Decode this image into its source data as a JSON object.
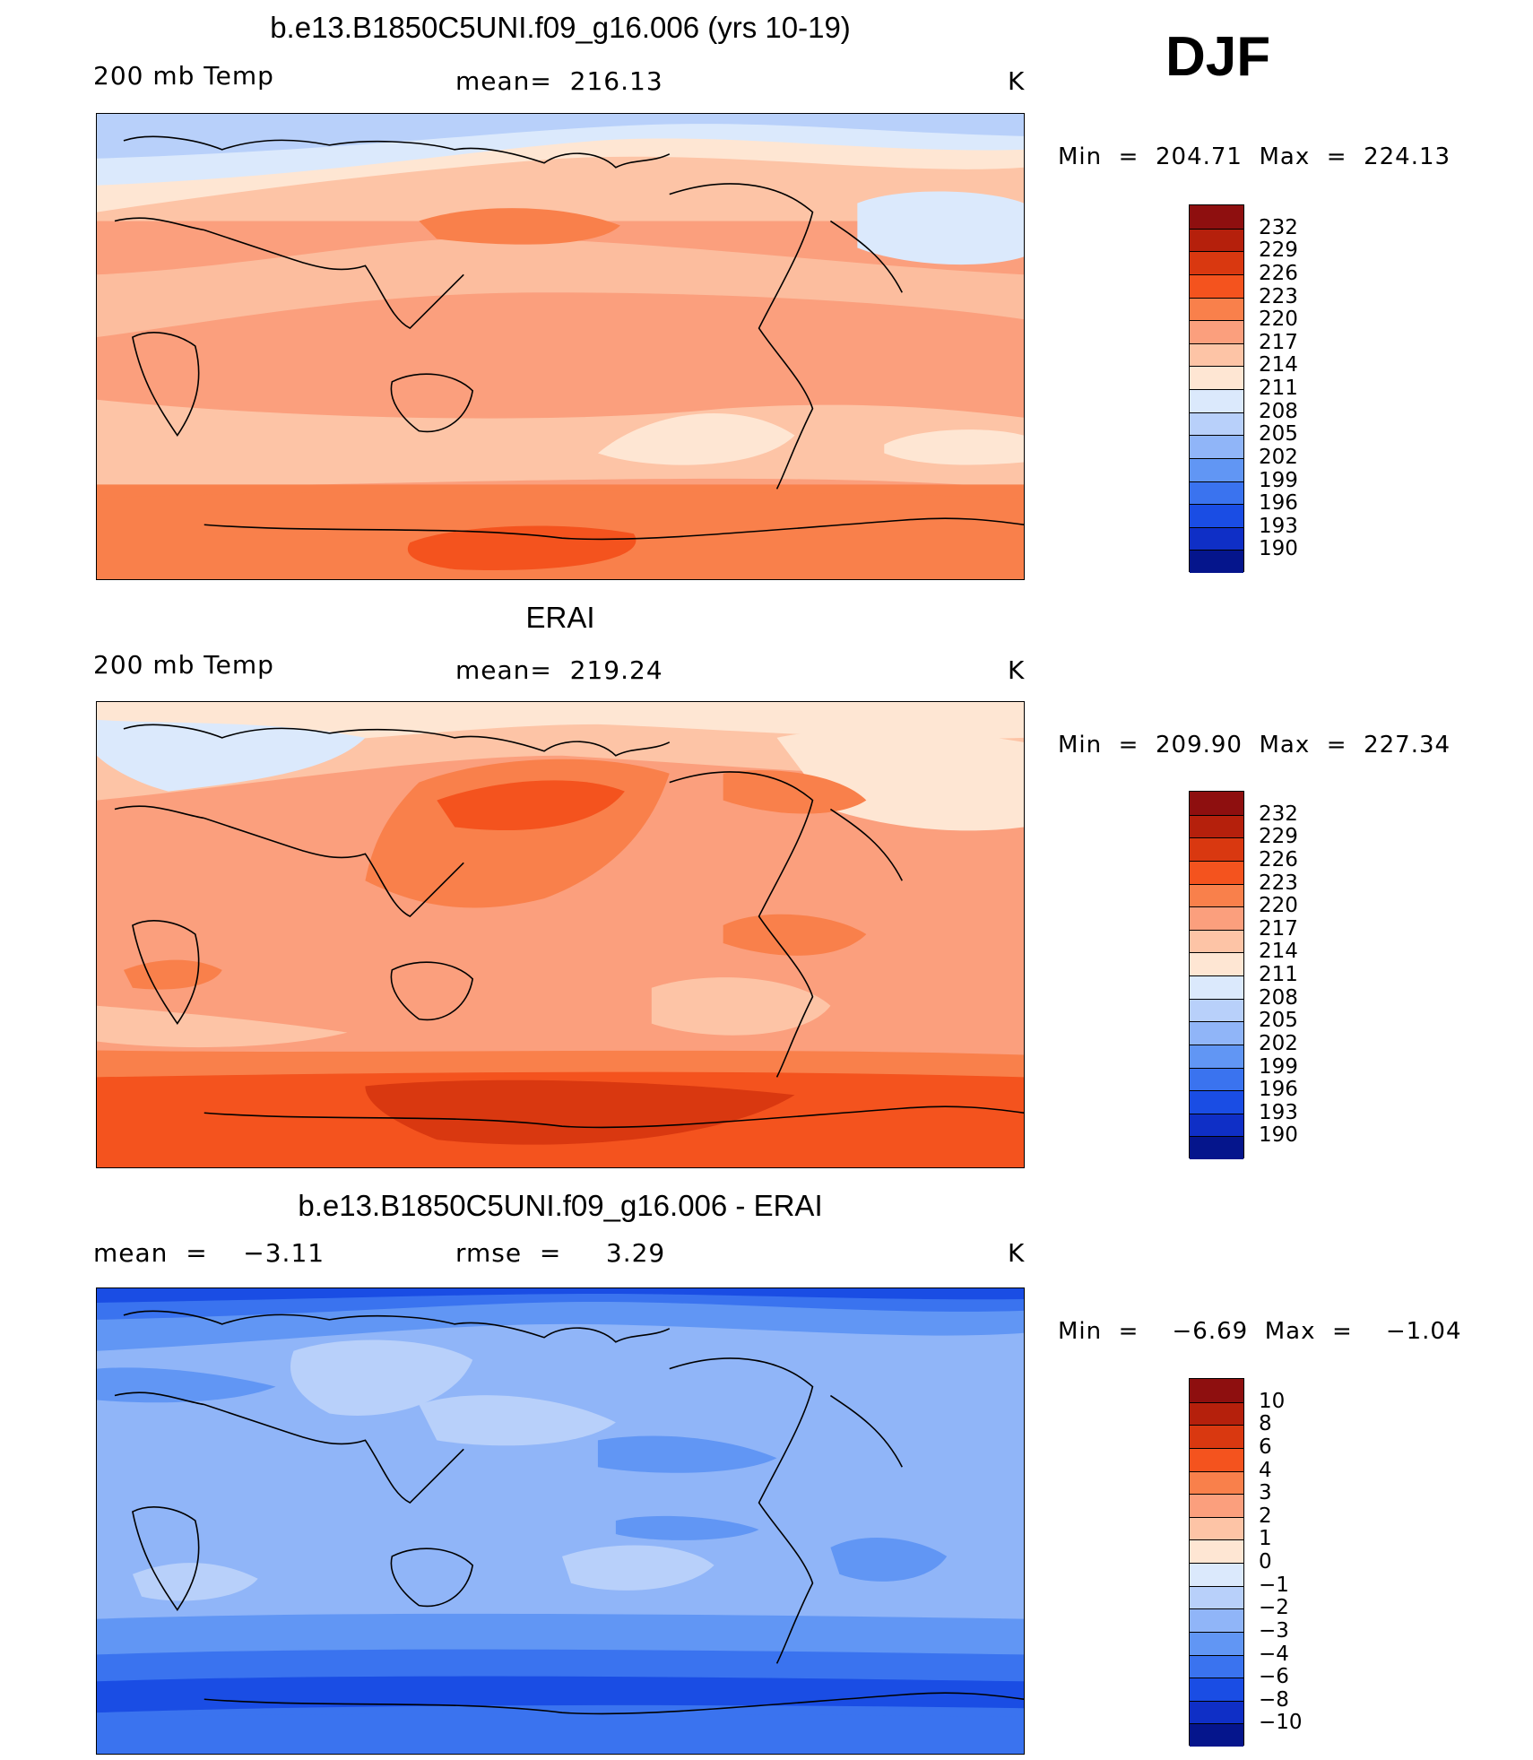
{
  "season": "DJF",
  "panels": [
    {
      "title": "b.e13.B1850C5UNI.f09_g16.006 (yrs 10-19)",
      "left_label": "200 mb Temp",
      "center_label": "mean=  216.13",
      "units": "K",
      "minmax": "Min  =  204.71  Max  =  224.13"
    },
    {
      "title": "ERAI",
      "left_label": "200 mb Temp",
      "center_label": "mean=  219.24",
      "units": "K",
      "minmax": "Min  =  209.90  Max  =  227.34"
    },
    {
      "title": "b.e13.B1850C5UNI.f09_g16.006 - ERAI",
      "left_label": "mean  =    −3.11",
      "center_label": "rmse  =     3.29",
      "units": "K",
      "minmax": "Min  =    −6.69  Max  =    −1.04"
    }
  ],
  "colorbars": {
    "temp": {
      "labels": [
        "232",
        "229",
        "226",
        "223",
        "220",
        "217",
        "214",
        "211",
        "208",
        "205",
        "202",
        "199",
        "196",
        "193",
        "190"
      ],
      "colors": [
        "#8e0f0f",
        "#b5200c",
        "#d93810",
        "#f4531e",
        "#f9804b",
        "#fb9f7d",
        "#fdc4a6",
        "#fee6d3",
        "#dbe9fc",
        "#b8d0fa",
        "#90b5f8",
        "#6196f4",
        "#3a73ef",
        "#1a4de4",
        "#0f2fc6",
        "#05158c"
      ]
    },
    "diff": {
      "labels": [
        "10",
        "8",
        "6",
        "4",
        "3",
        "2",
        "1",
        "0",
        "−1",
        "−2",
        "−3",
        "−4",
        "−6",
        "−8",
        "−10"
      ],
      "colors": [
        "#8e0f0f",
        "#b5200c",
        "#d93810",
        "#f4531e",
        "#f9804b",
        "#fb9f7d",
        "#fdc4a6",
        "#fee6d3",
        "#dbe9fc",
        "#b8d0fa",
        "#90b5f8",
        "#6196f4",
        "#3a73ef",
        "#1a4de4",
        "#0f2fc6",
        "#05158c"
      ]
    }
  },
  "chart_data": [
    {
      "type": "heatmap",
      "title": "b.e13.B1850C5UNI.f09_g16.006 (yrs 10-19)",
      "variable": "200 mb Temp",
      "units": "K",
      "mean": 216.13,
      "min": 204.71,
      "max": 224.13,
      "contour_levels": [
        190,
        193,
        196,
        199,
        202,
        205,
        208,
        211,
        214,
        217,
        220,
        223,
        226,
        229,
        232
      ]
    },
    {
      "type": "heatmap",
      "title": "ERAI",
      "variable": "200 mb Temp",
      "units": "K",
      "mean": 219.24,
      "min": 209.9,
      "max": 227.34,
      "contour_levels": [
        190,
        193,
        196,
        199,
        202,
        205,
        208,
        211,
        214,
        217,
        220,
        223,
        226,
        229,
        232
      ]
    },
    {
      "type": "heatmap",
      "title": "b.e13.B1850C5UNI.f09_g16.006 - ERAI",
      "units": "K",
      "mean": -3.11,
      "rmse": 3.29,
      "min": -6.69,
      "max": -1.04,
      "contour_levels": [
        -10,
        -8,
        -6,
        -4,
        -3,
        -2,
        -1,
        0,
        1,
        2,
        3,
        4,
        6,
        8,
        10
      ]
    }
  ]
}
